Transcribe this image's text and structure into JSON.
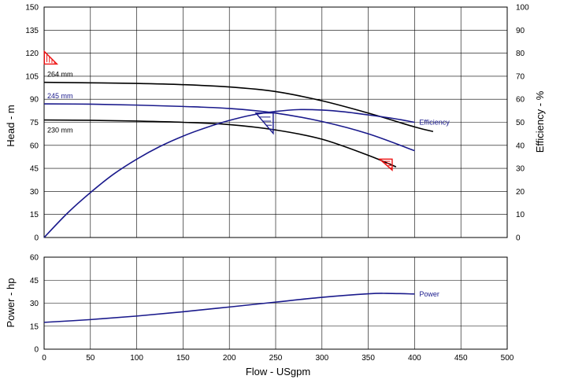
{
  "chart_data": [
    {
      "type": "line",
      "title": "",
      "xlabel": "",
      "ylabel": "Head - m",
      "y2label": "Efficiency - %",
      "xlim": [
        0,
        500
      ],
      "ylim": [
        0,
        150
      ],
      "y2lim": [
        0,
        100
      ],
      "x_ticks": [
        0,
        50,
        100,
        150,
        200,
        250,
        300,
        350,
        400,
        450,
        500
      ],
      "y_ticks": [
        0,
        15,
        30,
        45,
        60,
        75,
        90,
        105,
        120,
        135,
        150
      ],
      "y2_ticks": [
        0,
        10,
        20,
        30,
        40,
        50,
        60,
        70,
        80,
        90,
        100
      ],
      "grid": true,
      "series": [
        {
          "name": "264 mm",
          "axis": "left",
          "color": "#000000",
          "x": [
            0,
            50,
            100,
            150,
            200,
            250,
            300,
            350,
            400,
            420
          ],
          "y": [
            101,
            100.7,
            100.3,
            99.5,
            98,
            95,
            89,
            81,
            72,
            69
          ]
        },
        {
          "name": "245 mm",
          "axis": "left",
          "color": "#1a1a8c",
          "x": [
            0,
            50,
            100,
            150,
            200,
            250,
            300,
            350,
            400
          ],
          "y": [
            87,
            86.8,
            86.2,
            85.3,
            84,
            81,
            75.5,
            67.5,
            56.5
          ]
        },
        {
          "name": "230 mm",
          "axis": "left",
          "color": "#000000",
          "x": [
            0,
            50,
            100,
            150,
            200,
            250,
            300,
            350,
            380
          ],
          "y": [
            76.5,
            76.3,
            75.8,
            75,
            73.5,
            70,
            64,
            53.5,
            46
          ]
        },
        {
          "name": "Efficiency",
          "axis": "right",
          "color": "#1a1a8c",
          "x": [
            0,
            25,
            50,
            75,
            100,
            125,
            150,
            175,
            200,
            225,
            250,
            275,
            300,
            325,
            350,
            375,
            400
          ],
          "y": [
            0,
            10.5,
            19.5,
            27.5,
            34,
            39.5,
            44,
            47.7,
            50.8,
            53.2,
            54.7,
            55.5,
            55.3,
            54.5,
            53.2,
            51.8,
            50
          ]
        }
      ],
      "markers": [
        {
          "shape": "triangle",
          "color": "#ee1111",
          "x": 2,
          "y": 117,
          "axis": "left"
        },
        {
          "shape": "triangle",
          "color": "#1a1a8c",
          "x": 238,
          "y": 78,
          "axis": "left"
        },
        {
          "shape": "triangle",
          "color": "#ee1111",
          "x": 369,
          "y": 49,
          "axis": "left"
        }
      ]
    },
    {
      "type": "line",
      "title": "",
      "xlabel": "Flow - USgpm",
      "ylabel": "Power - hp",
      "xlim": [
        0,
        500
      ],
      "ylim": [
        0,
        60
      ],
      "x_ticks": [
        0,
        50,
        100,
        150,
        200,
        250,
        300,
        350,
        400,
        450,
        500
      ],
      "y_ticks": [
        0,
        15,
        30,
        45,
        60
      ],
      "grid": true,
      "series": [
        {
          "name": "Power",
          "color": "#1a1a8c",
          "x": [
            0,
            50,
            100,
            150,
            200,
            250,
            300,
            350,
            370,
            400
          ],
          "y": [
            17.5,
            19.3,
            21.6,
            24.4,
            27.5,
            30.7,
            33.8,
            36.1,
            36.4,
            36
          ]
        }
      ]
    }
  ]
}
